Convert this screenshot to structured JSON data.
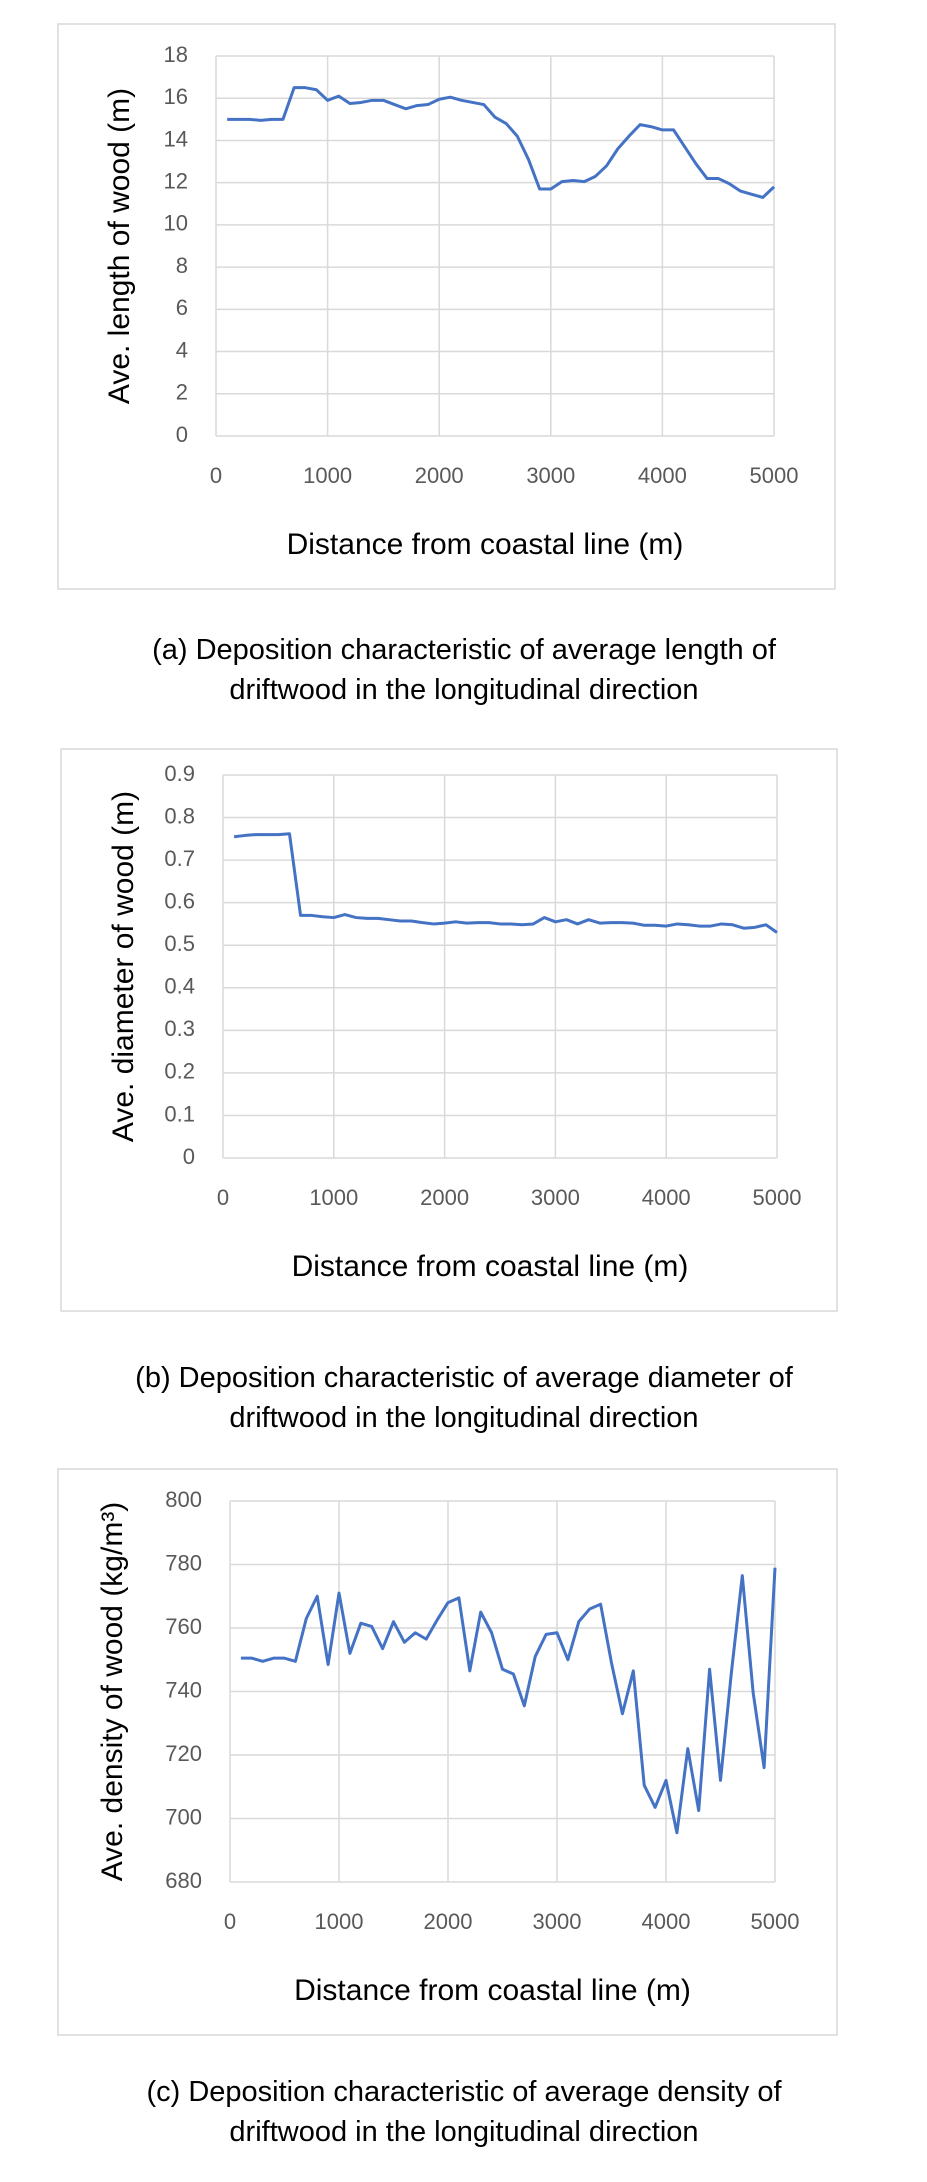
{
  "chart_data": [
    {
      "type": "line",
      "xlabel": "Distance from coastal line (m)",
      "ylabel": "Ave. length of wood (m)",
      "caption": "(a) Deposition characteristic of average length of driftwood in the longitudinal direction",
      "color": "#4472c4",
      "grid": true,
      "x": [
        100,
        200,
        300,
        400,
        500,
        600,
        700,
        800,
        900,
        1000,
        1100,
        1200,
        1300,
        1400,
        1500,
        1600,
        1700,
        1800,
        1900,
        2000,
        2100,
        2200,
        2300,
        2400,
        2500,
        2600,
        2700,
        2800,
        2900,
        3000,
        3100,
        3200,
        3300,
        3400,
        3500,
        3600,
        3700,
        3800,
        3900,
        4000,
        4100,
        4200,
        4300,
        4400,
        4500,
        4600,
        4700,
        4800,
        4900,
        5000
      ],
      "values": [
        15.0,
        15.0,
        15.0,
        14.95,
        15.0,
        15.0,
        16.5,
        16.5,
        16.4,
        15.9,
        16.1,
        15.75,
        15.8,
        15.9,
        15.9,
        15.7,
        15.5,
        15.65,
        15.7,
        15.95,
        16.05,
        15.9,
        15.8,
        15.7,
        15.1,
        14.8,
        14.2,
        13.1,
        11.7,
        11.7,
        12.05,
        12.1,
        12.05,
        12.3,
        12.8,
        13.6,
        14.2,
        14.75,
        14.65,
        14.5,
        14.5,
        13.7,
        12.9,
        12.2,
        12.2,
        11.95,
        11.6,
        11.45,
        11.3,
        11.8
      ],
      "xlim": [
        0,
        5000
      ],
      "xticks": [
        0,
        1000,
        2000,
        3000,
        4000,
        5000
      ],
      "ylim": [
        0,
        18
      ],
      "yticks": [
        0,
        2,
        4,
        6,
        8,
        10,
        12,
        14,
        16,
        18
      ]
    },
    {
      "type": "line",
      "xlabel": "Distance from coastal line (m)",
      "ylabel": "Ave. diameter of wood (m)",
      "caption": "(b) Deposition characteristic of average diameter of driftwood in the longitudinal direction",
      "color": "#4472c4",
      "grid": true,
      "x": [
        100,
        200,
        300,
        400,
        500,
        600,
        700,
        800,
        900,
        1000,
        1100,
        1200,
        1300,
        1400,
        1500,
        1600,
        1700,
        1800,
        1900,
        2000,
        2100,
        2200,
        2300,
        2400,
        2500,
        2600,
        2700,
        2800,
        2900,
        3000,
        3100,
        3200,
        3300,
        3400,
        3500,
        3600,
        3700,
        3800,
        3900,
        4000,
        4100,
        4200,
        4300,
        4400,
        4500,
        4600,
        4700,
        4800,
        4900,
        5000
      ],
      "values": [
        0.755,
        0.758,
        0.76,
        0.76,
        0.76,
        0.762,
        0.57,
        0.57,
        0.567,
        0.565,
        0.572,
        0.565,
        0.563,
        0.563,
        0.56,
        0.557,
        0.557,
        0.553,
        0.55,
        0.552,
        0.555,
        0.552,
        0.553,
        0.553,
        0.55,
        0.55,
        0.548,
        0.55,
        0.565,
        0.555,
        0.56,
        0.55,
        0.56,
        0.552,
        0.553,
        0.553,
        0.552,
        0.547,
        0.547,
        0.545,
        0.55,
        0.548,
        0.545,
        0.545,
        0.55,
        0.548,
        0.54,
        0.542,
        0.548,
        0.53
      ],
      "xlim": [
        0,
        5000
      ],
      "xticks": [
        0,
        1000,
        2000,
        3000,
        4000,
        5000
      ],
      "ylim": [
        0,
        0.9
      ],
      "yticks": [
        0,
        0.1,
        0.2,
        0.3,
        0.4,
        0.5,
        0.6,
        0.7,
        0.8,
        0.9
      ]
    },
    {
      "type": "line",
      "xlabel": "Distance from coastal line (m)",
      "ylabel": "Ave. density of wood (kg/m³)",
      "caption": "(c) Deposition characteristic of average density of driftwood in the longitudinal direction",
      "color": "#4472c4",
      "grid": true,
      "x": [
        100,
        200,
        300,
        400,
        500,
        600,
        700,
        800,
        900,
        1000,
        1100,
        1200,
        1300,
        1400,
        1500,
        1600,
        1700,
        1800,
        1900,
        2000,
        2100,
        2200,
        2300,
        2400,
        2500,
        2600,
        2700,
        2800,
        2900,
        3000,
        3100,
        3200,
        3300,
        3400,
        3500,
        3600,
        3700,
        3800,
        3900,
        4000,
        4100,
        4200,
        4300,
        4400,
        4500,
        4600,
        4700,
        4800,
        4900,
        5000
      ],
      "values": [
        750.5,
        750.5,
        749.5,
        750.5,
        750.5,
        749.5,
        763,
        770,
        748.5,
        771,
        752,
        761.5,
        760.5,
        753.5,
        762,
        755.5,
        758.5,
        756.5,
        762.5,
        768,
        769.5,
        746.5,
        765,
        758.5,
        747,
        745.5,
        735.5,
        751,
        758,
        758.5,
        750,
        762,
        766,
        767.5,
        749,
        733,
        746.5,
        710.5,
        703.5,
        712,
        695.5,
        722,
        702.5,
        747,
        712,
        746,
        776.5,
        739.5,
        716,
        779
      ],
      "xlim": [
        0,
        5000
      ],
      "xticks": [
        0,
        1000,
        2000,
        3000,
        4000,
        5000
      ],
      "ylim": [
        680,
        800
      ],
      "yticks": [
        680,
        700,
        720,
        740,
        760,
        780,
        800
      ]
    }
  ]
}
